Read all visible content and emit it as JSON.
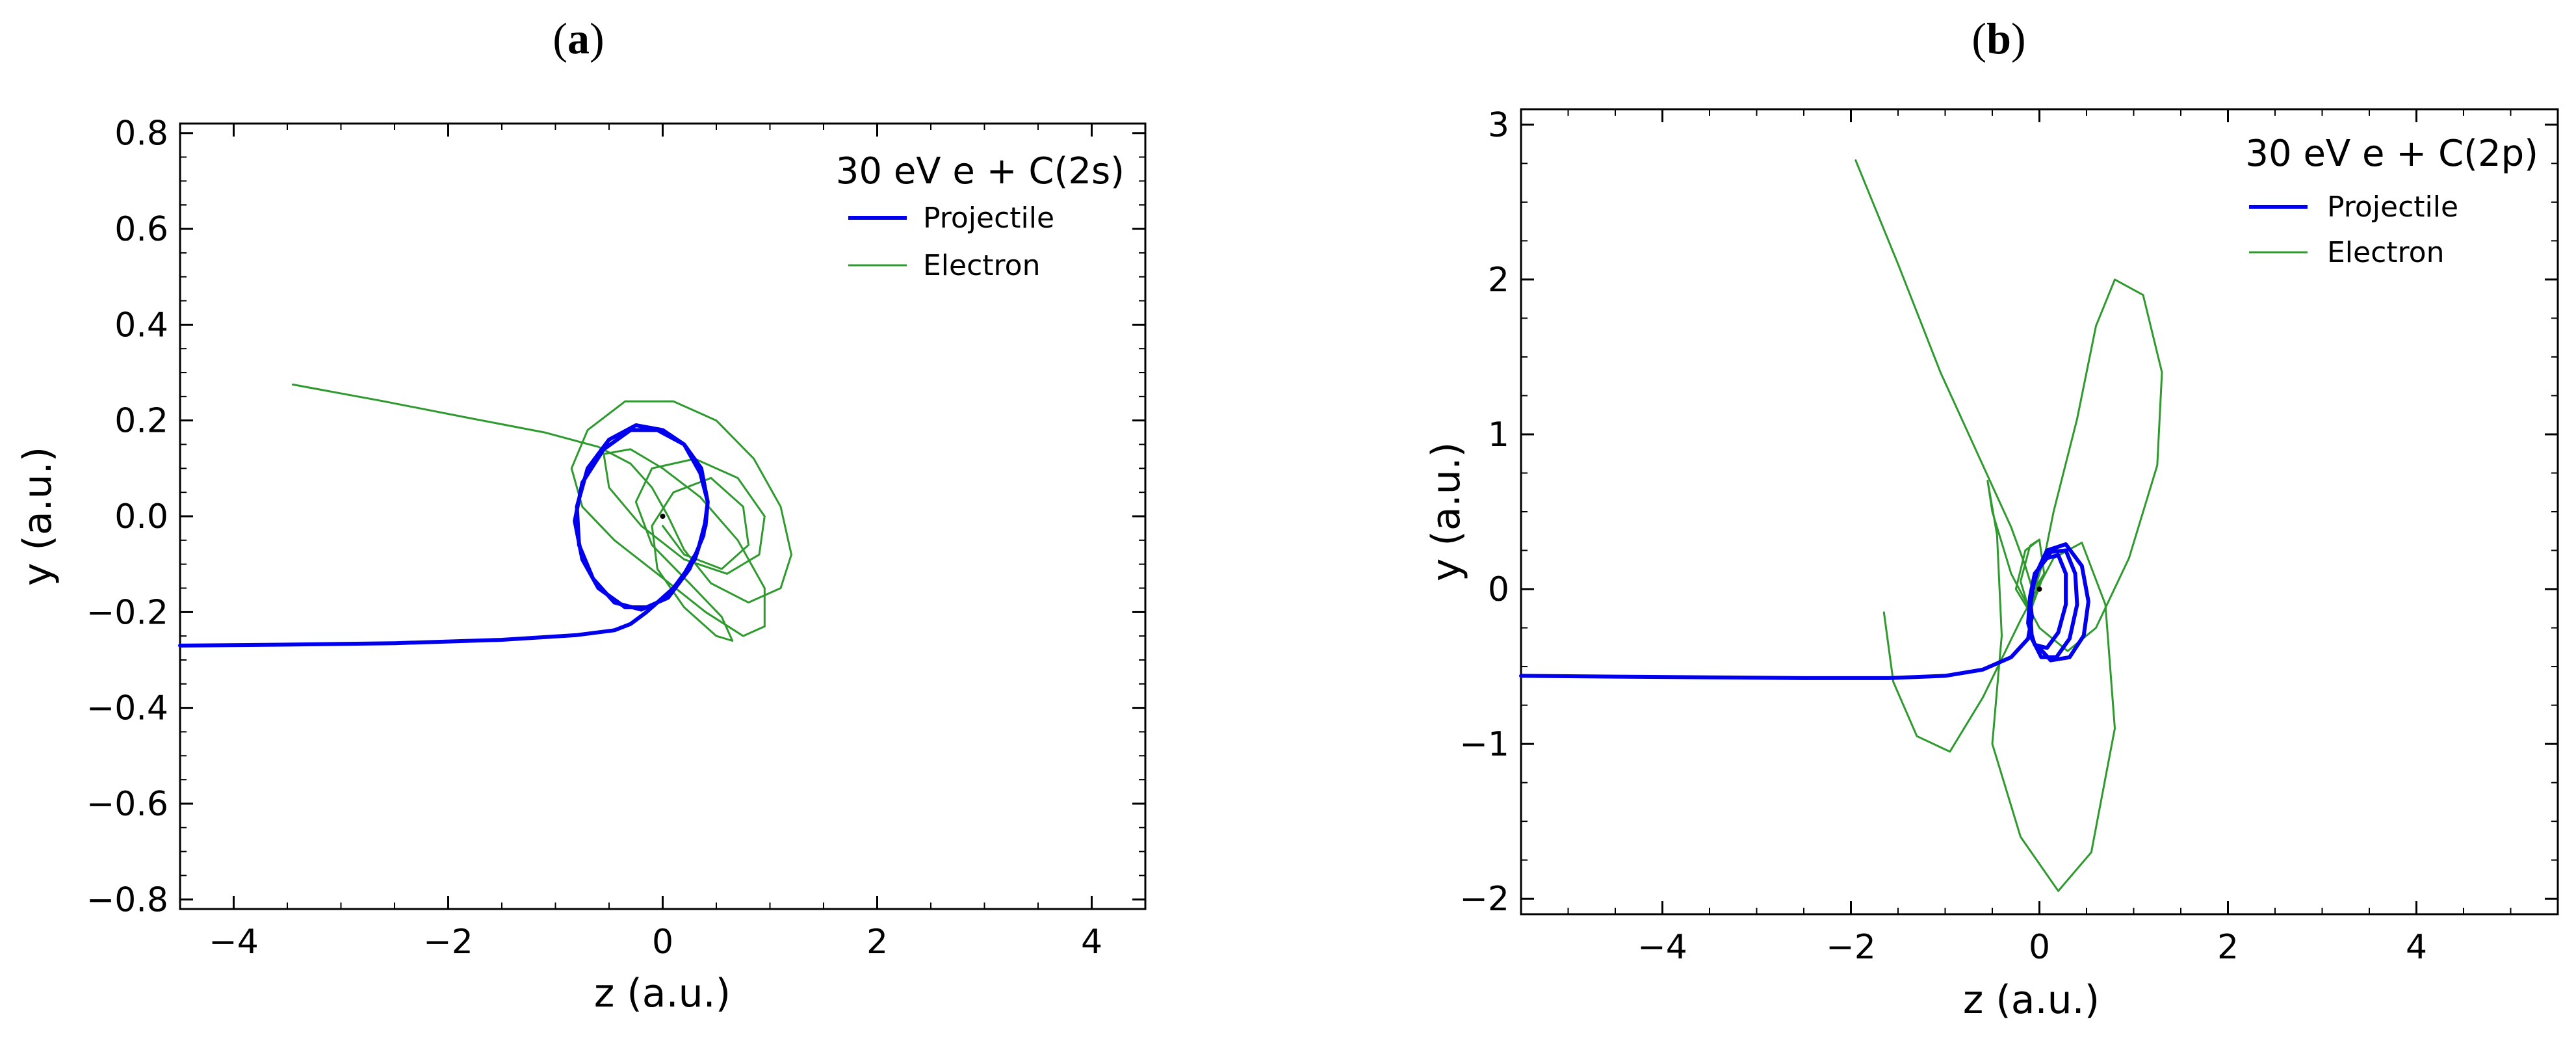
{
  "chart_data": [
    {
      "panel_label": "a",
      "type": "line",
      "xlabel": "z (a.u.)",
      "ylabel": "y (a.u.)",
      "xlim": [
        -4.5,
        4.5
      ],
      "ylim": [
        -0.82,
        0.82
      ],
      "xticks": [
        -4,
        -2,
        0,
        2,
        4
      ],
      "xtick_labels": [
        "−4",
        "−2",
        "0",
        "2",
        "4"
      ],
      "yticks": [
        -0.8,
        -0.6,
        -0.4,
        -0.2,
        0.0,
        0.2,
        0.4,
        0.6,
        0.8
      ],
      "ytick_labels": [
        "−0.8",
        "−0.6",
        "−0.4",
        "−0.2",
        "0.0",
        "0.2",
        "0.4",
        "0.6",
        "0.8"
      ],
      "legend": {
        "title": "30 eV e + C(2s)",
        "placement": "top-right"
      },
      "nucleus": {
        "x": 0,
        "y": 0
      },
      "series": [
        {
          "name": "Projectile",
          "color": "#0000ee",
          "points": [
            [
              -4.5,
              -0.27
            ],
            [
              -3.5,
              -0.268
            ],
            [
              -2.5,
              -0.265
            ],
            [
              -1.5,
              -0.258
            ],
            [
              -0.8,
              -0.248
            ],
            [
              -0.45,
              -0.238
            ],
            [
              -0.3,
              -0.225
            ],
            [
              -0.15,
              -0.2
            ],
            [
              0.1,
              -0.15
            ],
            [
              0.3,
              -0.09
            ],
            [
              0.4,
              -0.02
            ],
            [
              0.42,
              0.03
            ],
            [
              0.35,
              0.09
            ],
            [
              0.2,
              0.15
            ],
            [
              0.0,
              0.18
            ],
            [
              -0.25,
              0.19
            ],
            [
              -0.5,
              0.16
            ],
            [
              -0.7,
              0.1
            ],
            [
              -0.8,
              0.02
            ],
            [
              -0.78,
              -0.06
            ],
            [
              -0.65,
              -0.13
            ],
            [
              -0.45,
              -0.18
            ],
            [
              -0.2,
              -0.195
            ],
            [
              0.05,
              -0.17
            ],
            [
              0.25,
              -0.11
            ],
            [
              0.38,
              -0.04
            ],
            [
              0.42,
              0.03
            ],
            [
              0.36,
              0.1
            ],
            [
              0.2,
              0.15
            ],
            [
              -0.05,
              0.18
            ],
            [
              -0.3,
              0.18
            ],
            [
              -0.55,
              0.14
            ],
            [
              -0.75,
              0.07
            ],
            [
              -0.82,
              -0.01
            ],
            [
              -0.75,
              -0.09
            ],
            [
              -0.6,
              -0.15
            ],
            [
              -0.35,
              -0.19
            ],
            [
              -0.1,
              -0.19
            ],
            [
              0.15,
              -0.14
            ],
            [
              0.33,
              -0.07
            ],
            [
              0.4,
              -0.01
            ]
          ]
        },
        {
          "name": "Electron",
          "color": "#2e9a2e",
          "points": [
            [
              -3.45,
              0.275
            ],
            [
              -2.6,
              0.24
            ],
            [
              -1.8,
              0.205
            ],
            [
              -1.1,
              0.175
            ],
            [
              -0.6,
              0.145
            ],
            [
              -0.3,
              0.11
            ],
            [
              -0.1,
              0.06
            ],
            [
              0.05,
              0.0
            ],
            [
              0.2,
              -0.07
            ],
            [
              0.45,
              -0.14
            ],
            [
              0.8,
              -0.18
            ],
            [
              1.1,
              -0.15
            ],
            [
              1.2,
              -0.08
            ],
            [
              1.1,
              0.02
            ],
            [
              0.85,
              0.12
            ],
            [
              0.5,
              0.2
            ],
            [
              0.1,
              0.24
            ],
            [
              -0.35,
              0.24
            ],
            [
              -0.7,
              0.18
            ],
            [
              -0.85,
              0.1
            ],
            [
              -0.75,
              0.02
            ],
            [
              -0.45,
              -0.05
            ],
            [
              -0.05,
              -0.12
            ],
            [
              0.4,
              -0.2
            ],
            [
              0.75,
              -0.25
            ],
            [
              0.95,
              -0.23
            ],
            [
              0.95,
              -0.15
            ],
            [
              0.7,
              -0.05
            ],
            [
              0.35,
              0.04
            ],
            [
              0.0,
              0.1
            ],
            [
              -0.3,
              0.14
            ],
            [
              -0.55,
              0.13
            ],
            [
              -0.5,
              0.06
            ],
            [
              -0.2,
              -0.02
            ],
            [
              0.2,
              -0.09
            ],
            [
              0.6,
              -0.12
            ],
            [
              0.9,
              -0.08
            ],
            [
              0.95,
              0.0
            ],
            [
              0.7,
              0.08
            ],
            [
              0.3,
              0.12
            ],
            [
              -0.1,
              0.1
            ],
            [
              -0.25,
              0.03
            ],
            [
              -0.1,
              -0.06
            ],
            [
              0.25,
              -0.14
            ],
            [
              0.55,
              -0.21
            ],
            [
              0.65,
              -0.26
            ],
            [
              0.5,
              -0.25
            ],
            [
              0.2,
              -0.19
            ],
            [
              -0.05,
              -0.11
            ],
            [
              -0.1,
              -0.02
            ],
            [
              0.1,
              0.05
            ],
            [
              0.45,
              0.08
            ],
            [
              0.75,
              0.02
            ],
            [
              0.8,
              -0.06
            ],
            [
              0.55,
              -0.11
            ],
            [
              0.2,
              -0.08
            ],
            [
              0.0,
              -0.02
            ]
          ]
        }
      ]
    },
    {
      "panel_label": "b",
      "type": "line",
      "xlabel": "z (a.u.)",
      "ylabel": "y (a.u.)",
      "xlim": [
        -5.5,
        5.5
      ],
      "ylim": [
        -2.1,
        3.1
      ],
      "xticks": [
        -4,
        -2,
        0,
        2,
        4
      ],
      "xtick_labels": [
        "−4",
        "−2",
        "0",
        "2",
        "4"
      ],
      "yticks": [
        -2,
        -1,
        0,
        1,
        2,
        3
      ],
      "ytick_labels": [
        "−2",
        "−1",
        "0",
        "1",
        "2",
        "3"
      ],
      "legend": {
        "title": "30 eV e + C(2p)",
        "placement": "top-right"
      },
      "nucleus": {
        "x": 0,
        "y": 0
      },
      "series": [
        {
          "name": "Projectile",
          "color": "#0000ee",
          "points": [
            [
              -5.5,
              -0.56
            ],
            [
              -4.5,
              -0.565
            ],
            [
              -3.5,
              -0.57
            ],
            [
              -2.5,
              -0.575
            ],
            [
              -1.6,
              -0.575
            ],
            [
              -1.0,
              -0.56
            ],
            [
              -0.6,
              -0.52
            ],
            [
              -0.3,
              -0.44
            ],
            [
              -0.12,
              -0.32
            ],
            [
              -0.08,
              -0.18
            ],
            [
              -0.1,
              -0.05
            ],
            [
              -0.05,
              0.1
            ],
            [
              0.08,
              0.2
            ],
            [
              0.2,
              0.22
            ],
            [
              0.28,
              0.1
            ],
            [
              0.28,
              -0.1
            ],
            [
              0.2,
              -0.28
            ],
            [
              0.08,
              -0.38
            ],
            [
              -0.05,
              -0.36
            ],
            [
              -0.12,
              -0.22
            ],
            [
              -0.1,
              -0.05
            ],
            [
              -0.02,
              0.12
            ],
            [
              0.12,
              0.24
            ],
            [
              0.28,
              0.25
            ],
            [
              0.38,
              0.1
            ],
            [
              0.4,
              -0.1
            ],
            [
              0.32,
              -0.32
            ],
            [
              0.18,
              -0.44
            ],
            [
              0.02,
              -0.44
            ],
            [
              -0.08,
              -0.32
            ],
            [
              -0.1,
              -0.12
            ],
            [
              -0.05,
              0.08
            ],
            [
              0.08,
              0.25
            ],
            [
              0.28,
              0.29
            ],
            [
              0.45,
              0.15
            ],
            [
              0.52,
              -0.08
            ],
            [
              0.47,
              -0.3
            ],
            [
              0.32,
              -0.44
            ],
            [
              0.12,
              -0.46
            ],
            [
              0.0,
              -0.38
            ]
          ]
        },
        {
          "name": "Electron",
          "color": "#2e9a2e",
          "points": [
            [
              -1.95,
              2.77
            ],
            [
              -1.5,
              2.1
            ],
            [
              -1.05,
              1.4
            ],
            [
              -0.6,
              0.8
            ],
            [
              -0.3,
              0.4
            ],
            [
              -0.15,
              0.15
            ],
            [
              -0.05,
              -0.05
            ],
            [
              -0.1,
              -0.15
            ],
            [
              -0.25,
              0.0
            ],
            [
              -0.15,
              0.25
            ],
            [
              0.0,
              0.32
            ],
            [
              0.05,
              0.1
            ],
            [
              -0.1,
              -0.15
            ],
            [
              -0.2,
              0.05
            ],
            [
              -0.1,
              0.28
            ],
            [
              0.0,
              0.32
            ],
            [
              0.05,
              0.1
            ],
            [
              -0.05,
              0.0
            ],
            [
              0.05,
              0.2
            ],
            [
              0.15,
              0.5
            ],
            [
              0.4,
              1.1
            ],
            [
              0.6,
              1.7
            ],
            [
              0.8,
              2.0
            ],
            [
              1.1,
              1.9
            ],
            [
              1.3,
              1.4
            ],
            [
              1.25,
              0.8
            ],
            [
              0.95,
              0.2
            ],
            [
              0.6,
              -0.25
            ],
            [
              0.3,
              -0.4
            ],
            [
              0.0,
              -0.25
            ],
            [
              -0.3,
              0.1
            ],
            [
              -0.5,
              0.5
            ],
            [
              -0.55,
              0.7
            ],
            [
              -0.45,
              0.35
            ],
            [
              -0.4,
              -0.3
            ],
            [
              -0.5,
              -1.0
            ],
            [
              -0.2,
              -1.6
            ],
            [
              0.2,
              -1.95
            ],
            [
              0.55,
              -1.7
            ],
            [
              0.8,
              -0.9
            ],
            [
              0.7,
              -0.1
            ],
            [
              0.45,
              0.3
            ],
            [
              0.15,
              0.2
            ],
            [
              -0.2,
              -0.2
            ],
            [
              -0.6,
              -0.7
            ],
            [
              -0.95,
              -1.05
            ],
            [
              -1.3,
              -0.95
            ],
            [
              -1.55,
              -0.6
            ],
            [
              -1.65,
              -0.15
            ]
          ]
        }
      ]
    }
  ]
}
